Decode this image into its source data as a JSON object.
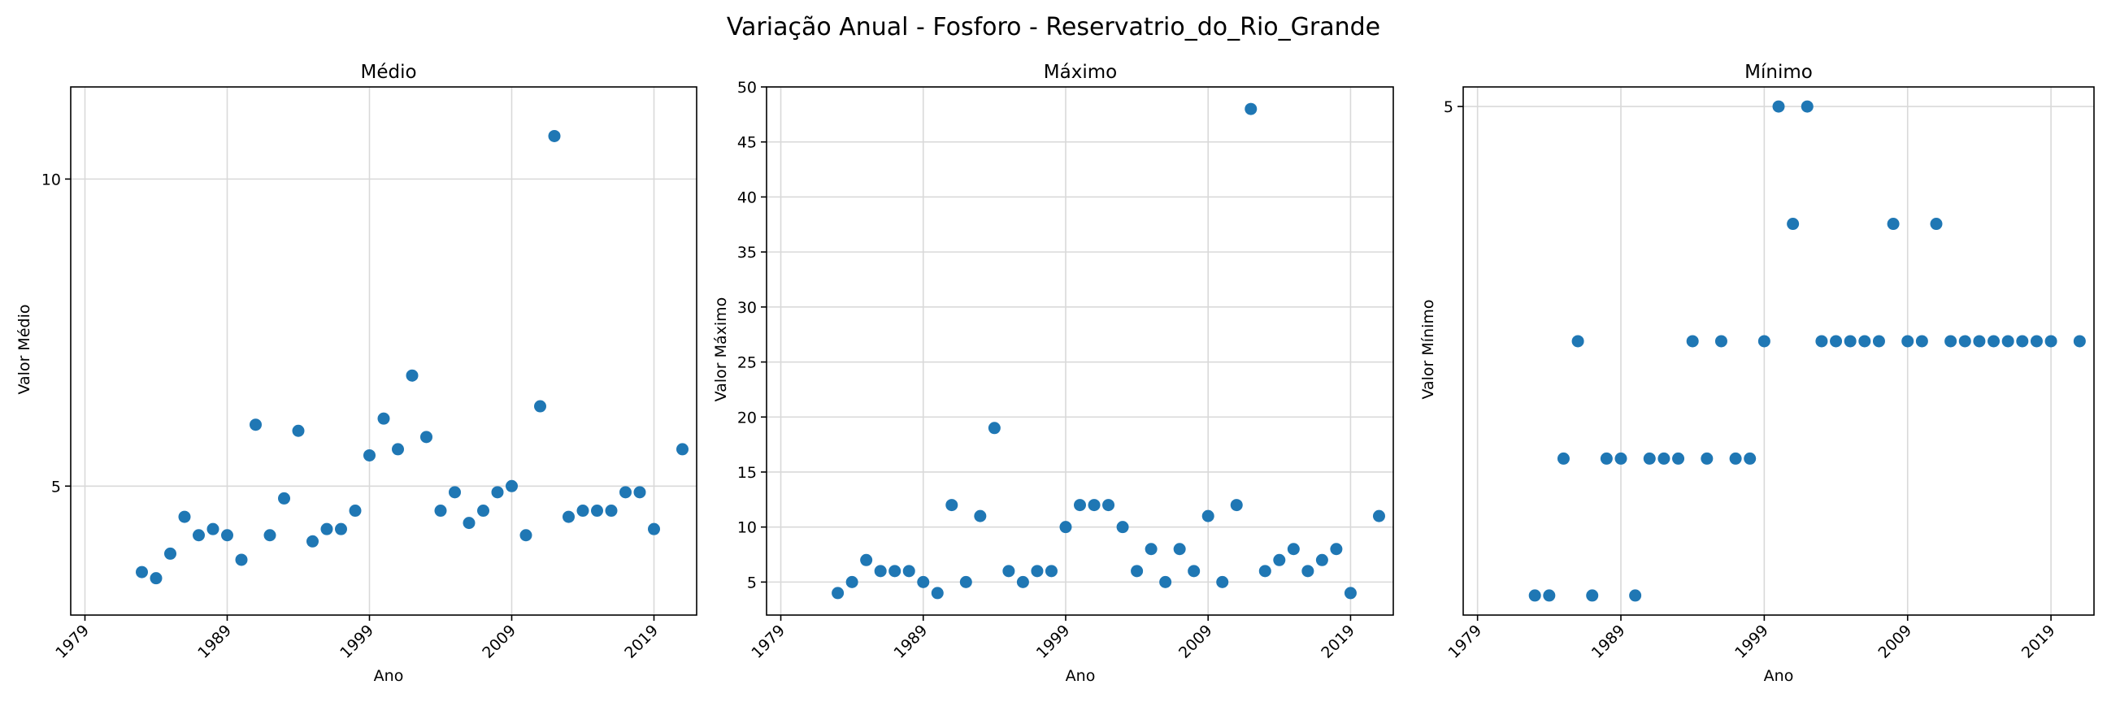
{
  "figure": {
    "title": "Variação Anual - Fosforo - Reservatrio_do_Rio_Grande"
  },
  "chart_data": [
    {
      "type": "scatter",
      "title": "Médio",
      "xlabel": "Ano",
      "ylabel": "Valor Médio",
      "xlim": [
        1978,
        2022
      ],
      "ylim": [
        2.9,
        11.5
      ],
      "grid": true,
      "xticks": [
        1979,
        1989,
        1999,
        2009,
        2019
      ],
      "yticks": [
        5,
        10
      ],
      "x": [
        1983,
        1984,
        1985,
        1986,
        1987,
        1988,
        1989,
        1990,
        1991,
        1992,
        1993,
        1994,
        1995,
        1996,
        1997,
        1998,
        1999,
        2000,
        2001,
        2002,
        2003,
        2004,
        2005,
        2006,
        2007,
        2008,
        2009,
        2010,
        2011,
        2012,
        2013,
        2014,
        2015,
        2016,
        2017,
        2018,
        2019,
        2021
      ],
      "y": [
        3.6,
        3.5,
        3.9,
        4.5,
        4.2,
        4.3,
        4.2,
        3.8,
        6.0,
        4.2,
        4.8,
        5.9,
        4.1,
        4.3,
        4.3,
        4.6,
        5.5,
        6.1,
        5.6,
        6.8,
        5.8,
        4.6,
        4.9,
        4.4,
        4.6,
        4.9,
        5.0,
        4.2,
        6.3,
        10.7,
        4.5,
        4.6,
        4.6,
        4.6,
        4.9,
        4.9,
        4.3,
        5.6
      ]
    },
    {
      "type": "scatter",
      "title": "Máximo",
      "xlabel": "Ano",
      "ylabel": "Valor Máximo",
      "xlim": [
        1978,
        2022
      ],
      "ylim": [
        2,
        50
      ],
      "grid": true,
      "xticks": [
        1979,
        1989,
        1999,
        2009,
        2019
      ],
      "yticks": [
        5,
        10,
        15,
        20,
        25,
        30,
        35,
        40,
        45,
        50
      ],
      "x": [
        1983,
        1984,
        1985,
        1986,
        1987,
        1988,
        1989,
        1990,
        1991,
        1992,
        1993,
        1994,
        1995,
        1996,
        1997,
        1998,
        1999,
        2000,
        2001,
        2002,
        2003,
        2004,
        2005,
        2006,
        2007,
        2008,
        2009,
        2010,
        2011,
        2012,
        2013,
        2014,
        2015,
        2016,
        2017,
        2018,
        2019,
        2021
      ],
      "y": [
        4,
        5,
        7,
        6,
        6,
        6,
        5,
        4,
        12,
        5,
        11,
        19,
        6,
        5,
        6,
        6,
        10,
        12,
        12,
        12,
        10,
        6,
        8,
        5,
        8,
        6,
        11,
        5,
        12,
        48,
        6,
        7,
        8,
        6,
        7,
        8,
        4,
        11
      ]
    },
    {
      "type": "scatter",
      "title": "Mínimo",
      "xlabel": "Ano",
      "ylabel": "Valor Mínimo",
      "xlim": [
        1978,
        2022
      ],
      "ylim": [
        2.4,
        5.1
      ],
      "grid": true,
      "xticks": [
        1979,
        1989,
        1999,
        2009,
        2019
      ],
      "yticks": [
        5
      ],
      "x": [
        1983,
        1984,
        1985,
        1986,
        1987,
        1988,
        1989,
        1990,
        1991,
        1992,
        1993,
        1994,
        1995,
        1996,
        1997,
        1998,
        1999,
        2000,
        2001,
        2002,
        2003,
        2004,
        2005,
        2006,
        2007,
        2008,
        2009,
        2010,
        2011,
        2012,
        2013,
        2014,
        2015,
        2016,
        2017,
        2018,
        2019,
        2021
      ],
      "y": [
        2.5,
        2.5,
        3.2,
        3.8,
        2.5,
        3.2,
        3.2,
        2.5,
        3.2,
        3.2,
        3.2,
        3.8,
        3.2,
        3.8,
        3.2,
        3.2,
        3.8,
        5.0,
        4.4,
        5.0,
        3.8,
        3.8,
        3.8,
        3.8,
        3.8,
        4.4,
        3.8,
        3.8,
        4.4,
        3.8,
        3.8,
        3.8,
        3.8,
        3.8,
        3.8,
        3.8,
        3.8,
        3.8
      ]
    }
  ]
}
